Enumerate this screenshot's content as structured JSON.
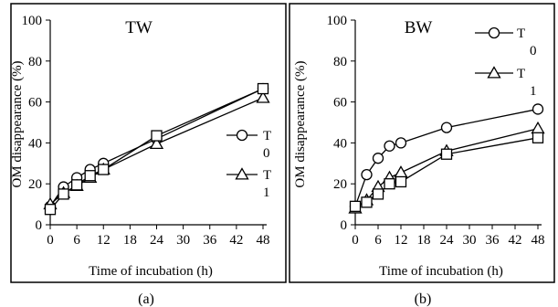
{
  "panel_labels": [
    "(a)",
    "(b)"
  ],
  "chart_data": [
    {
      "type": "line",
      "title": "TW",
      "xlabel": "Time of incubation (h)",
      "ylabel": "OM disappearance (%)",
      "x": [
        0,
        3,
        6,
        9,
        12,
        24,
        48
      ],
      "xticks": [
        0,
        6,
        12,
        18,
        24,
        30,
        36,
        42,
        48
      ],
      "xlim": [
        0,
        48
      ],
      "ylim": [
        0,
        100
      ],
      "yticks": [
        0,
        20,
        40,
        60,
        80,
        100
      ],
      "grid": false,
      "legend_position": "right",
      "series": [
        {
          "name": "T0",
          "legend_main": "T",
          "legend_sub": "0",
          "marker": "circle",
          "values": [
            9,
            18.5,
            23,
            27,
            30,
            42,
            66.5
          ]
        },
        {
          "name": "T1",
          "legend_main": "T",
          "legend_sub": "1",
          "marker": "triangle",
          "values": [
            10,
            15.5,
            19,
            23,
            27,
            39.5,
            62
          ]
        },
        {
          "name": "",
          "marker": "square",
          "values": [
            7.5,
            15,
            19.5,
            24,
            27,
            43.5,
            66.5
          ]
        }
      ]
    },
    {
      "type": "line",
      "title": "BW",
      "xlabel": "Time of incubation (h)",
      "ylabel": "OM disappearance (%)",
      "x": [
        0,
        3,
        6,
        9,
        12,
        24,
        48
      ],
      "xticks": [
        0,
        6,
        12,
        18,
        24,
        30,
        36,
        42,
        48
      ],
      "xlim": [
        0,
        48
      ],
      "ylim": [
        0,
        100
      ],
      "yticks": [
        0,
        20,
        40,
        60,
        80,
        100
      ],
      "grid": false,
      "legend_position": "top-right",
      "series": [
        {
          "name": "T0",
          "legend_main": "T",
          "legend_sub": "0",
          "marker": "circle",
          "values": [
            9,
            24.5,
            32.5,
            38.5,
            40,
            47.5,
            56.5
          ]
        },
        {
          "name": "T1",
          "legend_main": "T",
          "legend_sub": "1",
          "marker": "triangle",
          "values": [
            8,
            12,
            18.5,
            23,
            25.5,
            36,
            47
          ]
        },
        {
          "name": "",
          "marker": "square",
          "values": [
            9,
            11,
            15,
            20,
            21,
            34.5,
            42.5
          ]
        }
      ]
    }
  ]
}
